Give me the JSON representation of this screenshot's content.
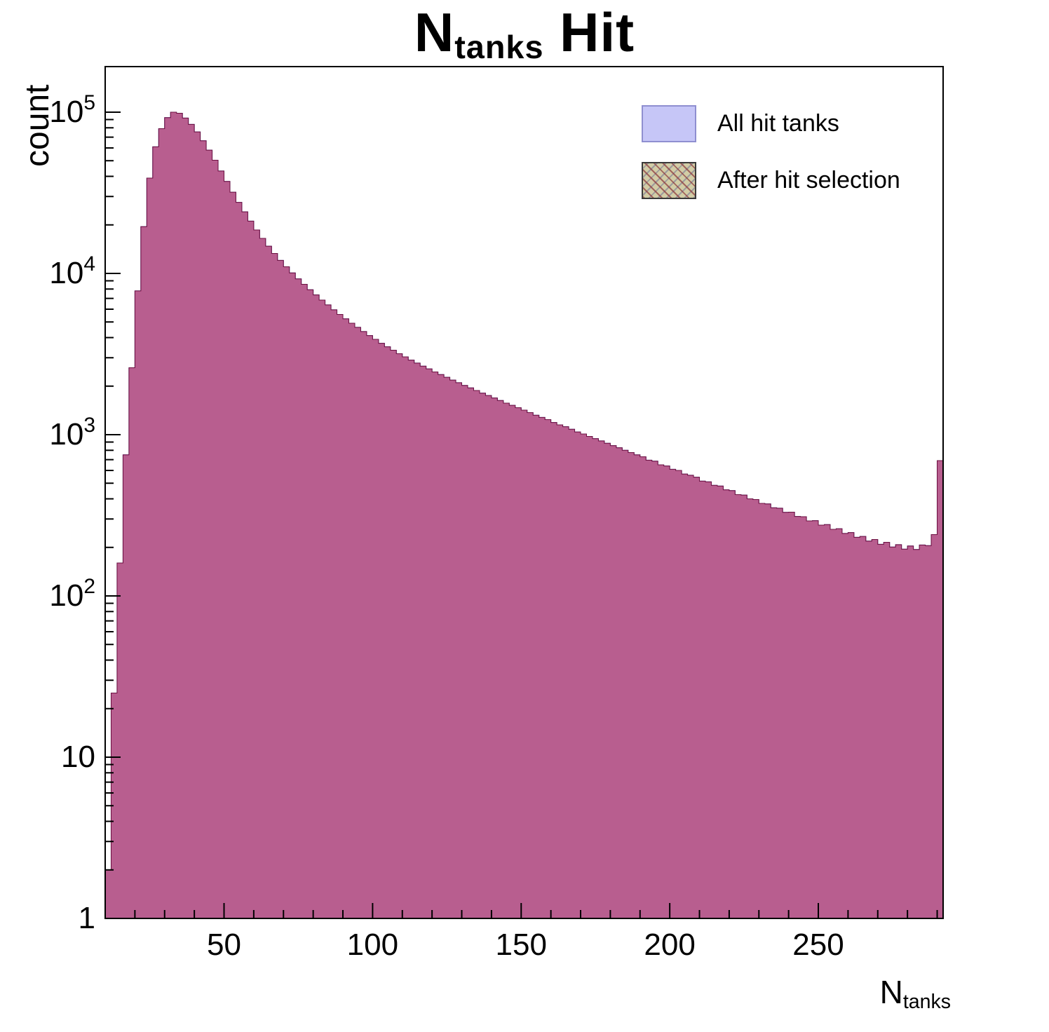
{
  "title": {
    "main": "N",
    "sub": "tanks",
    "rest": " Hit"
  },
  "axes": {
    "y_label": "count",
    "x_label_main": "N",
    "x_label_sub": "tanks",
    "x_ticks": [
      50,
      100,
      150,
      200,
      250
    ],
    "y_ticks": [
      {
        "label": "1",
        "exp": "",
        "value": 1
      },
      {
        "label": "10",
        "exp": "",
        "value": 10
      },
      {
        "label": "10",
        "exp": "2",
        "value": 100
      },
      {
        "label": "10",
        "exp": "3",
        "value": 1000
      },
      {
        "label": "10",
        "exp": "4",
        "value": 10000
      },
      {
        "label": "10",
        "exp": "5",
        "value": 100000
      }
    ]
  },
  "legend": {
    "items": [
      {
        "label": "All hit tanks",
        "swatch": "all"
      },
      {
        "label": "After hit selection",
        "swatch": "after"
      }
    ]
  },
  "colors": {
    "all_fill": "#b4b4f2",
    "all_edge": "#3a3ab0",
    "after_fill": "rgba(187,42,82,0.62)",
    "after_edge": "rgba(110,10,50,0.85)",
    "frame": "#000000"
  },
  "chart_data": {
    "type": "bar",
    "subtype": "histogram-overlay",
    "title": "N_{tanks} Hit",
    "xlabel": "N_{tanks}",
    "ylabel": "count",
    "yscale": "log",
    "xlim": [
      10,
      292
    ],
    "ylim": [
      1,
      190000
    ],
    "grid": false,
    "legend_position": "top-right",
    "x_start": 10,
    "bin_width": 2,
    "series": [
      {
        "name": "All hit tanks",
        "values": [
          2,
          25,
          160,
          750,
          2600,
          7800,
          19500,
          39000,
          61000,
          79000,
          92500,
          100000,
          98500,
          92000,
          84000,
          75500,
          66500,
          58200,
          50400,
          43200,
          37200,
          31900,
          27600,
          24100,
          21100,
          18600,
          16500,
          14750,
          13300,
          12050,
          11000,
          10080,
          9250,
          8560,
          7920,
          7360,
          6840,
          6380,
          5950,
          5570,
          5230,
          4910,
          4630,
          4360,
          4120,
          3900,
          3690,
          3510,
          3340,
          3180,
          3040,
          2900,
          2780,
          2660,
          2560,
          2450,
          2360,
          2270,
          2180,
          2100,
          2020,
          1950,
          1880,
          1810,
          1750,
          1690,
          1630,
          1570,
          1520,
          1470,
          1420,
          1370,
          1320,
          1280,
          1240,
          1190,
          1150,
          1120,
          1080,
          1040,
          1010,
          975,
          945,
          915,
          885,
          855,
          830,
          800,
          775,
          750,
          730,
          695,
          685,
          650,
          640,
          610,
          600,
          570,
          560,
          545,
          515,
          510,
          485,
          480,
          455,
          450,
          425,
          422,
          400,
          396,
          375,
          372,
          352,
          350,
          330,
          331,
          311,
          310,
          292,
          293,
          275,
          277,
          259,
          261,
          244,
          247,
          231,
          234,
          219,
          224,
          209,
          215,
          201,
          208,
          195,
          204,
          194,
          207,
          205,
          240,
          690
        ]
      },
      {
        "name": "After hit selection",
        "values": [
          2,
          25,
          160,
          750,
          2600,
          7800,
          19500,
          39000,
          61000,
          79000,
          92500,
          100000,
          98500,
          92000,
          84000,
          75500,
          66500,
          58200,
          50400,
          43200,
          37200,
          31900,
          27600,
          24100,
          21100,
          18600,
          16500,
          14750,
          13300,
          12050,
          11000,
          10080,
          9250,
          8560,
          7920,
          7360,
          6840,
          6380,
          5950,
          5570,
          5230,
          4910,
          4630,
          4360,
          4120,
          3900,
          3690,
          3510,
          3340,
          3180,
          3040,
          2900,
          2780,
          2660,
          2560,
          2450,
          2360,
          2270,
          2180,
          2100,
          2020,
          1950,
          1880,
          1810,
          1750,
          1690,
          1630,
          1570,
          1520,
          1470,
          1420,
          1370,
          1320,
          1280,
          1240,
          1190,
          1150,
          1120,
          1080,
          1040,
          1010,
          975,
          945,
          915,
          885,
          855,
          830,
          800,
          775,
          750,
          730,
          695,
          685,
          650,
          640,
          610,
          600,
          570,
          560,
          545,
          515,
          510,
          485,
          480,
          455,
          450,
          425,
          422,
          400,
          396,
          375,
          372,
          352,
          350,
          330,
          331,
          311,
          310,
          292,
          293,
          275,
          277,
          259,
          261,
          244,
          247,
          231,
          234,
          219,
          224,
          209,
          215,
          201,
          208,
          195,
          204,
          194,
          207,
          205,
          240,
          690
        ]
      }
    ]
  }
}
